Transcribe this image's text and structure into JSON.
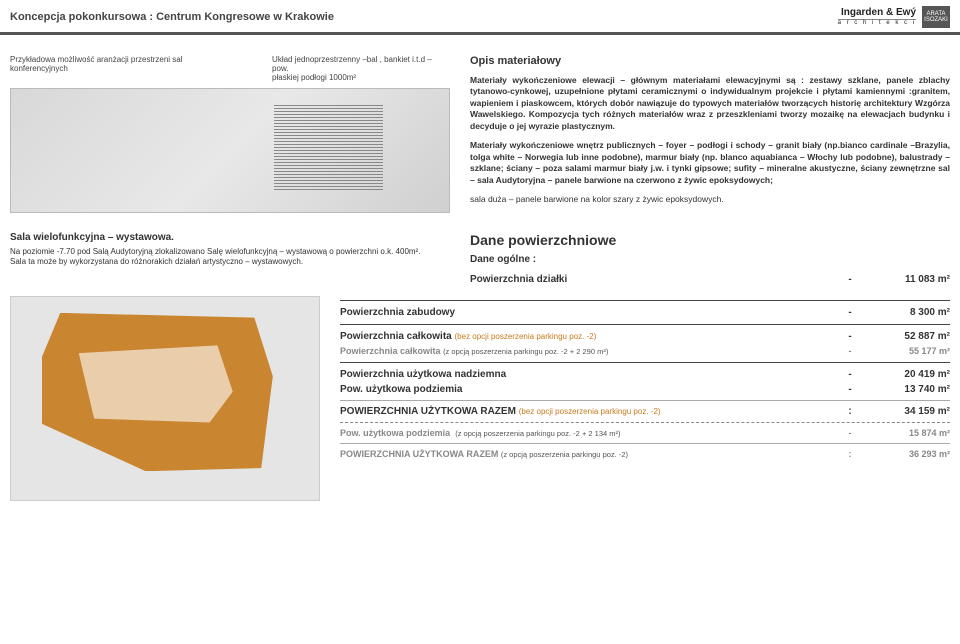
{
  "header": {
    "title": "Koncepcja pokonkursowa : Centrum Kongresowe w Krakowie",
    "logo1_top": "Ingarden & Ewý",
    "logo1_sub": "a r c h i t e k c i",
    "logo2": "ARATA ISOZAKI"
  },
  "top": {
    "caption1": "Przykładowa możliwość aranżacji przestrzeni sal konferencyjnych",
    "caption2a": "Układ jednoprzestrzenny –bal , bankiet i.t.d – pow.",
    "caption2b": "płaskiej podłogi 1000m²"
  },
  "opis": {
    "heading": "Opis materiałowy",
    "p1": "Materiały wykończeniowe elewacji – głównym materiałami elewacyjnymi są : zestawy szklane, panele zblachy tytanowo-cynkowej, uzupełnione płytami ceramicznymi o indywidualnym projekcie i płytami kamiennymi :granitem, wapieniem i piaskowcem, których dobór nawiązuje do typowych materiałów tworzących historię architektury Wzgórza Wawelskiego. Kompozycja tych różnych materiałów wraz z przeszkleniami tworzy mozaikę na elewacjach budynku i decyduje o jej wyrazie plastycznym.",
    "p2": "Materiały wykończeniowe wnętrz publicznych – foyer – podłogi i schody – granit biały (np.bianco cardinale –Brazylia, tolga white – Norwegia lub inne podobne), marmur biały (np. blanco aquabianca – Włochy lub podobne), balustrady – szklane; ściany – poza salami marmur biały j.w. i tynki gipsowe; sufity – mineralne akustyczne, ściany zewnętrzne sal – sala Audytoryjna – panele barwione na czerwono z żywic epoksydowych;",
    "p3": "sala duża – panele barwione na kolor szary z żywic epoksydowych."
  },
  "sala": {
    "heading": "Sala wielofunkcyjna – wystawowa.",
    "p1": "Na poziomie -7.70 pod Salą Audytoryjną zlokalizowano Salę wielofunkcyjną – wystawową o powierzchni o.k. 400m².",
    "p2": "Sala ta może by wykorzystana do różnorakich działań artystyczno – wystawowych."
  },
  "dane": {
    "heading": "Dane powierzchniowe",
    "ogolne": "Dane ogólne :",
    "r1_l": "Powierzchnia działki",
    "r1_v": "11 083 m²",
    "r2_l": "Powierzchnia zabudowy",
    "r2_v": "8 300 m²",
    "r3_l": "Powierzchnia całkowita",
    "r3_n": "(bez opcji poszerzenia parkingu poz. -2)",
    "r3_v": "52 887 m²",
    "r3b_l": "Powierzchnia całkowita",
    "r3b_n": "(z opcją poszerzenia parkingu poz. -2 + 2 290 m²)",
    "r3b_v": "55 177 m²",
    "r4_l": "Powierzchnia użytkowa nadziemna",
    "r4_v": "20 419 m²",
    "r5_l": "Pow. użytkowa podziemia",
    "r5_v": "13 740 m²",
    "r6_l": "POWIERZCHNIA UŻYTKOWA RAZEM",
    "r6_n": "(bez opcji poszerzenia parkingu poz. -2)",
    "r6_v": "34 159 m²",
    "r7_l": "Pow. użytkowa podziemia",
    "r7_n": "(z opcją poszerzenia parkingu poz. -2 + 2 134 m²)",
    "r7_v": "15 874 m²",
    "r8_l": "POWIERZCHNIA UŻYTKOWA RAZEM",
    "r8_n": "(z opcją poszerzenia parkingu poz. -2)",
    "r8_v": "36 293 m²",
    "dash": "-",
    "colon": ":"
  }
}
